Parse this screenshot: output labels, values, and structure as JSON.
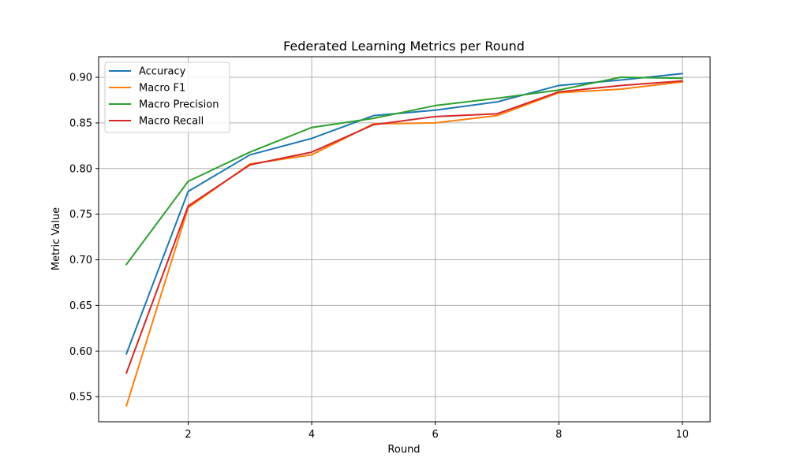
{
  "chart_data": {
    "type": "line",
    "title": "Federated Learning Metrics per Round",
    "xlabel": "Round",
    "ylabel": "Metric Value",
    "xlim": [
      0.55,
      10.45
    ],
    "ylim": [
      0.5225,
      0.9225
    ],
    "x_ticks": [
      2,
      4,
      6,
      8,
      10
    ],
    "y_ticks": [
      0.55,
      0.6,
      0.65,
      0.7,
      0.75,
      0.8,
      0.85,
      0.9
    ],
    "grid": true,
    "legend_position": "top-left",
    "x": [
      1,
      2,
      3,
      4,
      5,
      6,
      7,
      8,
      9,
      10
    ],
    "series": [
      {
        "name": "Accuracy",
        "color": "#1f77b4",
        "values": [
          0.597,
          0.775,
          0.815,
          0.833,
          0.858,
          0.864,
          0.873,
          0.891,
          0.897,
          0.904
        ]
      },
      {
        "name": "Macro F1",
        "color": "#ff7f0e",
        "values": [
          0.54,
          0.757,
          0.805,
          0.815,
          0.849,
          0.85,
          0.858,
          0.883,
          0.887,
          0.895
        ]
      },
      {
        "name": "Macro Precision",
        "color": "#2ca02c",
        "values": [
          0.695,
          0.786,
          0.818,
          0.845,
          0.855,
          0.869,
          0.877,
          0.886,
          0.9,
          0.899
        ]
      },
      {
        "name": "Macro Recall",
        "color": "#d62728",
        "values": [
          0.576,
          0.759,
          0.804,
          0.818,
          0.848,
          0.857,
          0.86,
          0.884,
          0.891,
          0.896
        ]
      }
    ]
  }
}
